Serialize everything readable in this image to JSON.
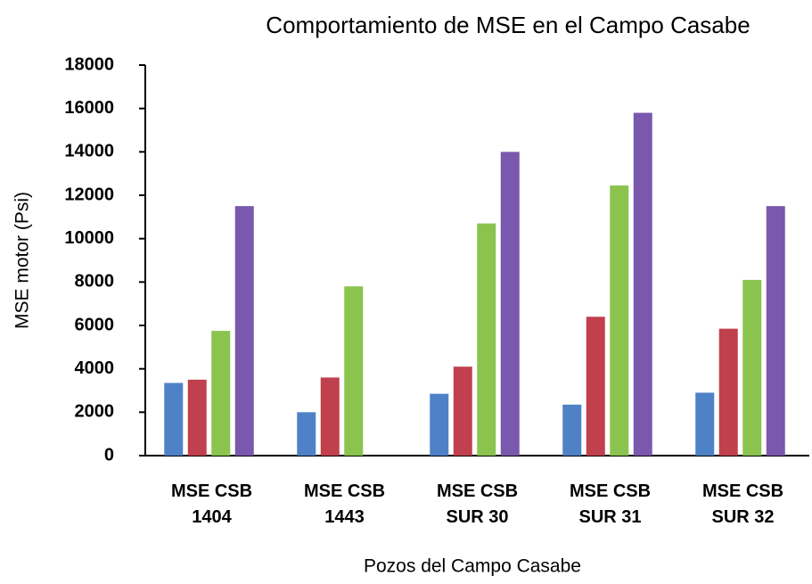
{
  "chart_data": {
    "type": "bar",
    "title": "Comportamiento de MSE en el Campo Casabe",
    "x_label": "Pozos del Campo Casabe",
    "y_label": "MSE motor (Psi)",
    "categories": [
      "MSE CSB 1404",
      "MSE CSB 1443",
      "MSE CSB SUR 30",
      "MSE CSB SUR 31",
      "MSE CSB SUR 32"
    ],
    "series": [
      {
        "color": "#4f81c7",
        "values": [
          3350,
          2000,
          2850,
          2350,
          2900
        ]
      },
      {
        "color": "#c0404d",
        "values": [
          3500,
          3600,
          4100,
          6400,
          5850
        ]
      },
      {
        "color": "#8bc34f",
        "values": [
          5750,
          7800,
          10700,
          12450,
          8100
        ]
      },
      {
        "color": "#7a58ad",
        "values": [
          11500,
          null,
          14000,
          15800,
          11500
        ]
      }
    ],
    "ylim": [
      0,
      18000
    ],
    "yticks": [
      0,
      2000,
      4000,
      6000,
      8000,
      10000,
      12000,
      14000,
      16000,
      18000
    ],
    "grid": false
  }
}
